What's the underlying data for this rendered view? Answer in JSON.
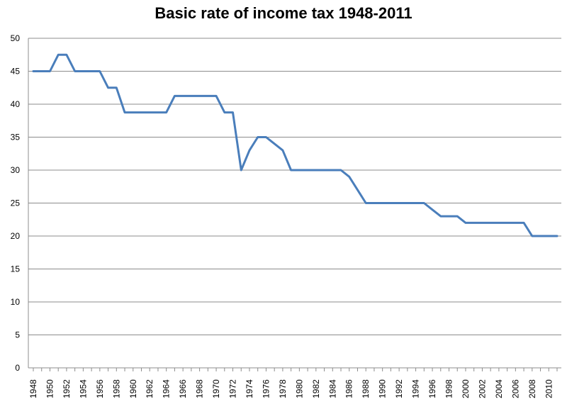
{
  "chart_data": {
    "type": "line",
    "title": "Basic rate of income tax 1948-2011",
    "xlabel": "",
    "ylabel": "",
    "ylim": [
      0,
      50
    ],
    "yticks": [
      0,
      5,
      10,
      15,
      20,
      25,
      30,
      35,
      40,
      45,
      50
    ],
    "xlim": [
      1948,
      2011
    ],
    "xtick_labels": [
      "1948",
      "1950",
      "1952",
      "1954",
      "1956",
      "1958",
      "1960",
      "1962",
      "1964",
      "1966",
      "1968",
      "1970",
      "1972",
      "1974",
      "1976",
      "1978",
      "1980",
      "1982",
      "1984",
      "1986",
      "1988",
      "1990",
      "1992",
      "1994",
      "1996",
      "1998",
      "2000",
      "2002",
      "2004",
      "2006",
      "2008",
      "2010"
    ],
    "grid": "horizontal",
    "line_color": "#4a7ebb",
    "series": [
      {
        "x": [
          1948,
          1949,
          1950,
          1951,
          1952,
          1953,
          1954,
          1955,
          1956,
          1957,
          1958,
          1959,
          1960,
          1961,
          1962,
          1963,
          1964,
          1965,
          1966,
          1967,
          1968,
          1969,
          1970,
          1971,
          1972,
          1973,
          1974,
          1975,
          1976,
          1977,
          1978,
          1979,
          1980,
          1981,
          1982,
          1983,
          1984,
          1985,
          1986,
          1987,
          1988,
          1989,
          1990,
          1991,
          1992,
          1993,
          1994,
          1995,
          1996,
          1997,
          1998,
          1999,
          2000,
          2001,
          2002,
          2003,
          2004,
          2005,
          2006,
          2007,
          2008,
          2009,
          2010,
          2011
        ],
        "values": [
          45,
          45,
          45,
          47.5,
          47.5,
          45,
          45,
          45,
          45,
          42.5,
          42.5,
          38.75,
          38.75,
          38.75,
          38.75,
          38.75,
          38.75,
          41.25,
          41.25,
          41.25,
          41.25,
          41.25,
          41.25,
          38.75,
          38.75,
          30,
          33,
          35,
          35,
          34,
          33,
          30,
          30,
          30,
          30,
          30,
          30,
          30,
          29,
          27,
          25,
          25,
          25,
          25,
          25,
          25,
          25,
          25,
          24,
          23,
          23,
          23,
          22,
          22,
          22,
          22,
          22,
          22,
          22,
          22,
          20,
          20,
          20,
          20
        ]
      }
    ]
  }
}
